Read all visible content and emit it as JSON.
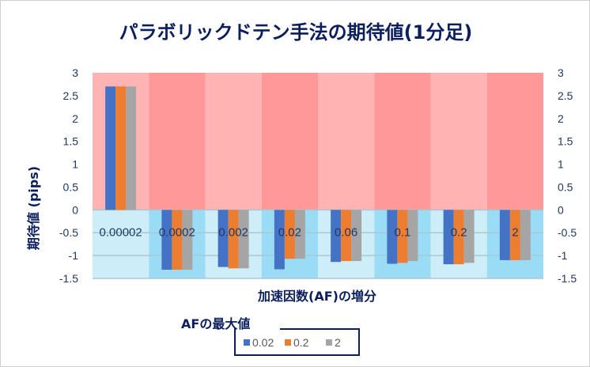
{
  "chart_data": {
    "type": "bar",
    "title": "パラボリックドテン手法の期待値(1分足)",
    "xlabel": "加速因数(AF)の増分",
    "ylabel": "期待値 (pips)",
    "categories": [
      "0.00002",
      "0.0002",
      "0.002",
      "0.02",
      "0.06",
      "0.1",
      "0.2",
      "2"
    ],
    "ylim": [
      -1.5,
      3
    ],
    "yticks": [
      "3",
      "2.5",
      "2",
      "1.5",
      "1",
      "0.5",
      "0",
      "-0.5",
      "-1",
      "-1.5"
    ],
    "legend_title": "AFの最大値",
    "legend_position": "bottom",
    "series": [
      {
        "name": "0.02",
        "color": "#4472c4",
        "values": [
          2.7,
          -1.31,
          -1.25,
          -1.3,
          -1.14,
          -1.18,
          -1.19,
          -1.1
        ]
      },
      {
        "name": "0.2",
        "color": "#ed7d31",
        "values": [
          2.7,
          -1.31,
          -1.28,
          -1.07,
          -1.12,
          -1.16,
          -1.19,
          -1.1
        ]
      },
      {
        "name": "2",
        "color": "#a5a5a5",
        "values": [
          2.7,
          -1.31,
          -1.28,
          -1.07,
          -1.12,
          -1.12,
          -1.16,
          -1.1
        ]
      }
    ]
  }
}
